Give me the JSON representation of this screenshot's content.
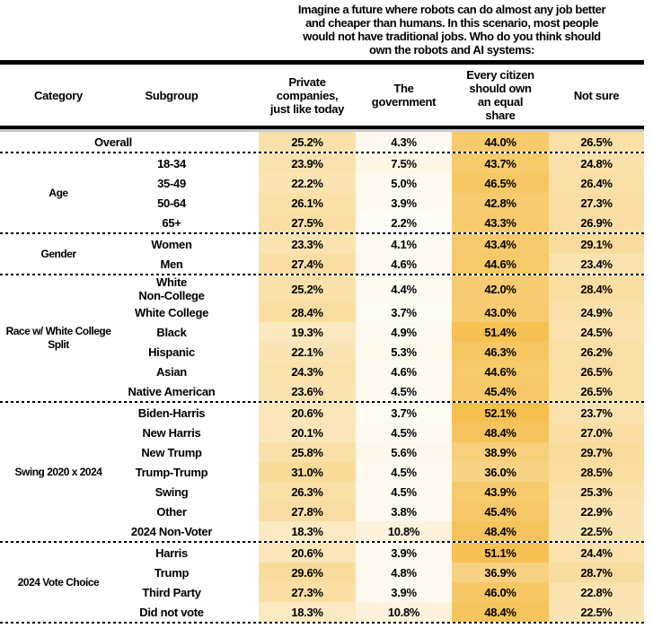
{
  "question": "Imagine a future where robots can do almost any job better\nand cheaper than humans. In this scenario, most people\nwould not have traditional jobs. Who do you think should\nown the robots and AI systems:",
  "header": {
    "category": "Category",
    "subgroup": "Subgroup",
    "options": [
      "Private\ncompanies,\njust like today",
      "The\ngovernment",
      "Every citizen\nshould own\nan equal\nshare",
      "Not sure"
    ]
  },
  "chart_data": {
    "type": "heatmap",
    "title": "Imagine a future where robots can do almost any job better and cheaper than humans. In this scenario, most people would not have traditional jobs. Who do you think should own the robots and AI systems:",
    "unit": "%",
    "columns": [
      "Private companies, just like today",
      "The government",
      "Every citizen should own an equal share",
      "Not sure"
    ],
    "color_scale": {
      "min_value": 0,
      "max_value": 52.1,
      "min_color": "#FFFFFF",
      "max_color": "#F5C050"
    },
    "groups": [
      {
        "category": "",
        "rows": [
          {
            "subgroup": "Overall",
            "values": [
              25.2,
              4.3,
              44.0,
              26.5
            ]
          }
        ]
      },
      {
        "category": "Age",
        "rows": [
          {
            "subgroup": "18-34",
            "values": [
              23.9,
              7.5,
              43.7,
              24.8
            ]
          },
          {
            "subgroup": "35-49",
            "values": [
              22.2,
              5.0,
              46.5,
              26.4
            ]
          },
          {
            "subgroup": "50-64",
            "values": [
              26.1,
              3.9,
              42.8,
              27.3
            ]
          },
          {
            "subgroup": "65+",
            "values": [
              27.5,
              2.2,
              43.3,
              26.9
            ]
          }
        ]
      },
      {
        "category": "Gender",
        "rows": [
          {
            "subgroup": "Women",
            "values": [
              23.3,
              4.1,
              43.4,
              29.1
            ]
          },
          {
            "subgroup": "Men",
            "values": [
              27.4,
              4.6,
              44.6,
              23.4
            ]
          }
        ]
      },
      {
        "category": "Race w/ White College\nSplit",
        "rows": [
          {
            "subgroup": "White\nNon-College",
            "values": [
              25.2,
              4.4,
              42.0,
              28.4
            ]
          },
          {
            "subgroup": "White College",
            "values": [
              28.4,
              3.7,
              43.0,
              24.9
            ]
          },
          {
            "subgroup": "Black",
            "values": [
              19.3,
              4.9,
              51.4,
              24.5
            ]
          },
          {
            "subgroup": "Hispanic",
            "values": [
              22.1,
              5.3,
              46.3,
              26.2
            ]
          },
          {
            "subgroup": "Asian",
            "values": [
              24.3,
              4.6,
              44.6,
              26.5
            ]
          },
          {
            "subgroup": "Native American",
            "values": [
              23.6,
              4.5,
              45.4,
              26.5
            ]
          }
        ]
      },
      {
        "category": "Swing 2020 x 2024",
        "rows": [
          {
            "subgroup": "Biden-Harris",
            "values": [
              20.6,
              3.7,
              52.1,
              23.7
            ]
          },
          {
            "subgroup": "New Harris",
            "values": [
              20.1,
              4.5,
              48.4,
              27.0
            ]
          },
          {
            "subgroup": "New Trump",
            "values": [
              25.8,
              5.6,
              38.9,
              29.7
            ]
          },
          {
            "subgroup": "Trump-Trump",
            "values": [
              31.0,
              4.5,
              36.0,
              28.5
            ]
          },
          {
            "subgroup": "Swing",
            "values": [
              26.3,
              4.5,
              43.9,
              25.3
            ]
          },
          {
            "subgroup": "Other",
            "values": [
              27.8,
              3.8,
              45.4,
              22.9
            ]
          },
          {
            "subgroup": "2024 Non-Voter",
            "values": [
              18.3,
              10.8,
              48.4,
              22.5
            ]
          }
        ]
      },
      {
        "category": "2024 Vote Choice",
        "rows": [
          {
            "subgroup": "Harris",
            "values": [
              20.6,
              3.9,
              51.1,
              24.4
            ]
          },
          {
            "subgroup": "Trump",
            "values": [
              29.6,
              4.8,
              36.9,
              28.7
            ]
          },
          {
            "subgroup": "Third Party",
            "values": [
              27.3,
              3.9,
              46.0,
              22.8
            ]
          },
          {
            "subgroup": "Did not vote",
            "values": [
              18.3,
              10.8,
              48.4,
              22.5
            ]
          }
        ]
      }
    ]
  }
}
